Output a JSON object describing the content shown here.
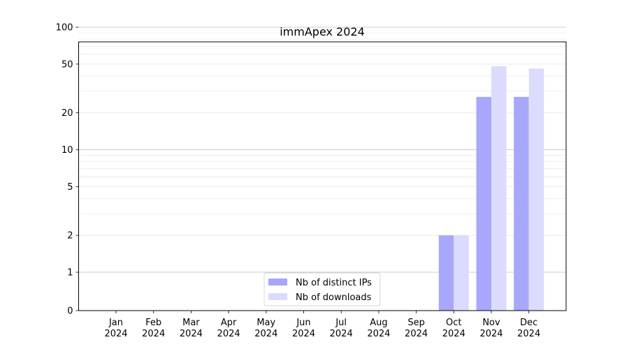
{
  "chart_data": {
    "type": "bar",
    "title": "immApex 2024",
    "xlabel": "",
    "ylabel": "",
    "y_scale": "symlog",
    "ylim": [
      0,
      130
    ],
    "y_ticks": [
      0,
      1,
      2,
      5,
      10,
      20,
      50,
      100
    ],
    "grid": "y",
    "legend_position": "bottom-center",
    "categories": [
      "Jan\n2024",
      "Feb\n2024",
      "Mar\n2024",
      "Apr\n2024",
      "May\n2024",
      "Jun\n2024",
      "Jul\n2024",
      "Aug\n2024",
      "Sep\n2024",
      "Oct\n2024",
      "Nov\n2024",
      "Dec\n2024"
    ],
    "series": [
      {
        "name": "Nb of distinct IPs",
        "color": "#a7a7fb",
        "values": [
          0,
          0,
          0,
          0,
          0,
          0,
          0,
          0,
          0,
          2,
          27,
          27
        ]
      },
      {
        "name": "Nb of downloads",
        "color": "#dbdbfd",
        "values": [
          0,
          0,
          0,
          0,
          0,
          0,
          0,
          0,
          0,
          2,
          48,
          46
        ]
      }
    ]
  }
}
